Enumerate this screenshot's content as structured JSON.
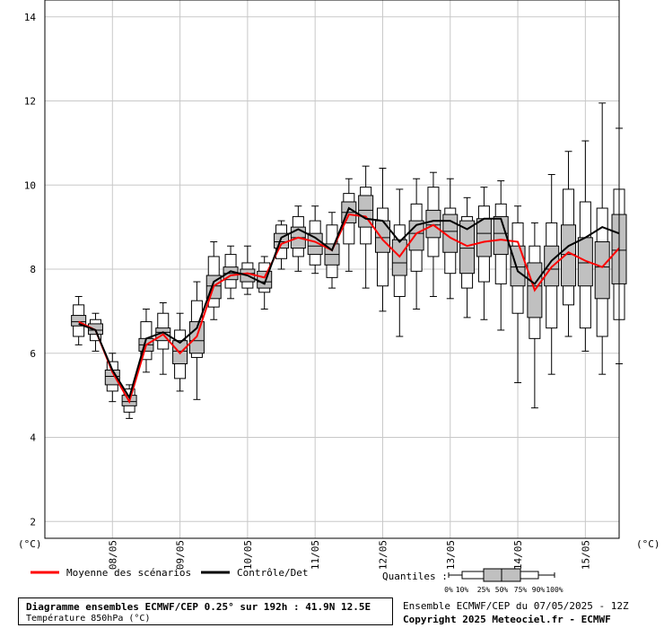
{
  "chart_data": {
    "type": "boxplot",
    "title": "",
    "y_unit_left": "(°C)",
    "y_unit_right": "(°C)",
    "ylim": [
      1.6,
      14.4
    ],
    "yticks": [
      2,
      4,
      6,
      8,
      10,
      12,
      14
    ],
    "grid": true,
    "x_tick_labels": [
      "08/05",
      "09/05",
      "10/05",
      "11/05",
      "12/05",
      "13/05",
      "14/05",
      "15/05"
    ],
    "x_range_hours": [
      -12,
      192
    ],
    "x_tick_hours": [
      12,
      36,
      60,
      84,
      108,
      132,
      156,
      180
    ],
    "boxes": [
      {
        "h": 0,
        "min": 6.2,
        "p10": 6.4,
        "p25": 6.65,
        "p50": 6.75,
        "p75": 6.9,
        "p90": 7.15,
        "max": 7.35
      },
      {
        "h": 6,
        "min": 6.05,
        "p10": 6.3,
        "p25": 6.45,
        "p50": 6.55,
        "p75": 6.7,
        "p90": 6.8,
        "max": 6.95
      },
      {
        "h": 12,
        "min": 4.85,
        "p10": 5.1,
        "p25": 5.25,
        "p50": 5.45,
        "p75": 5.6,
        "p90": 5.8,
        "max": 6.0
      },
      {
        "h": 18,
        "min": 4.45,
        "p10": 4.6,
        "p25": 4.75,
        "p50": 4.85,
        "p75": 5.0,
        "p90": 5.15,
        "max": 5.25
      },
      {
        "h": 24,
        "min": 5.55,
        "p10": 5.85,
        "p25": 6.05,
        "p50": 6.2,
        "p75": 6.35,
        "p90": 6.75,
        "max": 7.05
      },
      {
        "h": 30,
        "min": 5.5,
        "p10": 6.1,
        "p25": 6.3,
        "p50": 6.5,
        "p75": 6.6,
        "p90": 6.95,
        "max": 7.2
      },
      {
        "h": 36,
        "min": 5.1,
        "p10": 5.4,
        "p25": 5.75,
        "p50": 6.05,
        "p75": 6.3,
        "p90": 6.55,
        "max": 6.95
      },
      {
        "h": 42,
        "min": 4.9,
        "p10": 5.9,
        "p25": 6.0,
        "p50": 6.3,
        "p75": 6.75,
        "p90": 7.25,
        "max": 7.7
      },
      {
        "h": 48,
        "min": 6.8,
        "p10": 7.1,
        "p25": 7.3,
        "p50": 7.6,
        "p75": 7.85,
        "p90": 8.3,
        "max": 8.65
      },
      {
        "h": 54,
        "min": 7.3,
        "p10": 7.55,
        "p25": 7.75,
        "p50": 7.9,
        "p75": 8.05,
        "p90": 8.35,
        "max": 8.55
      },
      {
        "h": 60,
        "min": 7.4,
        "p10": 7.55,
        "p25": 7.7,
        "p50": 7.9,
        "p75": 8.0,
        "p90": 8.15,
        "max": 8.55
      },
      {
        "h": 66,
        "min": 7.05,
        "p10": 7.45,
        "p25": 7.55,
        "p50": 7.7,
        "p75": 7.95,
        "p90": 8.15,
        "max": 8.3
      },
      {
        "h": 72,
        "min": 8.0,
        "p10": 8.25,
        "p25": 8.5,
        "p50": 8.65,
        "p75": 8.85,
        "p90": 9.05,
        "max": 9.15
      },
      {
        "h": 78,
        "min": 7.95,
        "p10": 8.3,
        "p25": 8.5,
        "p50": 8.75,
        "p75": 9.0,
        "p90": 9.25,
        "max": 9.5
      },
      {
        "h": 84,
        "min": 7.9,
        "p10": 8.1,
        "p25": 8.35,
        "p50": 8.55,
        "p75": 8.85,
        "p90": 9.15,
        "max": 9.5
      },
      {
        "h": 90,
        "min": 7.55,
        "p10": 7.8,
        "p25": 8.1,
        "p50": 8.35,
        "p75": 8.6,
        "p90": 9.05,
        "max": 9.35
      },
      {
        "h": 96,
        "min": 7.95,
        "p10": 8.6,
        "p25": 9.1,
        "p50": 9.35,
        "p75": 9.6,
        "p90": 9.8,
        "max": 10.15
      },
      {
        "h": 102,
        "min": 7.55,
        "p10": 8.6,
        "p25": 9.0,
        "p50": 9.4,
        "p75": 9.75,
        "p90": 9.95,
        "max": 10.45
      },
      {
        "h": 108,
        "min": 7.0,
        "p10": 7.6,
        "p25": 8.4,
        "p50": 8.75,
        "p75": 9.15,
        "p90": 9.45,
        "max": 10.4
      },
      {
        "h": 114,
        "min": 6.4,
        "p10": 7.35,
        "p25": 7.85,
        "p50": 8.15,
        "p75": 8.7,
        "p90": 9.05,
        "max": 9.9
      },
      {
        "h": 120,
        "min": 7.05,
        "p10": 7.95,
        "p25": 8.45,
        "p50": 8.85,
        "p75": 9.15,
        "p90": 9.55,
        "max": 10.15
      },
      {
        "h": 126,
        "min": 7.35,
        "p10": 8.3,
        "p25": 8.75,
        "p50": 9.05,
        "p75": 9.4,
        "p90": 9.95,
        "max": 10.3
      },
      {
        "h": 132,
        "min": 7.3,
        "p10": 7.9,
        "p25": 8.4,
        "p50": 8.9,
        "p75": 9.3,
        "p90": 9.45,
        "max": 10.15
      },
      {
        "h": 138,
        "min": 6.85,
        "p10": 7.55,
        "p25": 7.9,
        "p50": 8.5,
        "p75": 9.15,
        "p90": 9.25,
        "max": 9.7
      },
      {
        "h": 144,
        "min": 6.8,
        "p10": 7.7,
        "p25": 8.3,
        "p50": 8.85,
        "p75": 9.2,
        "p90": 9.5,
        "max": 9.95
      },
      {
        "h": 150,
        "min": 6.55,
        "p10": 7.65,
        "p25": 8.35,
        "p50": 8.85,
        "p75": 9.25,
        "p90": 9.55,
        "max": 10.1
      },
      {
        "h": 156,
        "min": 5.3,
        "p10": 6.95,
        "p25": 7.6,
        "p50": 8.05,
        "p75": 8.55,
        "p90": 9.1,
        "max": 9.5
      },
      {
        "h": 162,
        "min": 4.7,
        "p10": 6.35,
        "p25": 6.85,
        "p50": 7.6,
        "p75": 8.15,
        "p90": 8.55,
        "max": 9.1
      },
      {
        "h": 168,
        "min": 5.5,
        "p10": 6.6,
        "p25": 7.6,
        "p50": 8.0,
        "p75": 8.55,
        "p90": 9.1,
        "max": 10.25
      },
      {
        "h": 174,
        "min": 6.4,
        "p10": 7.15,
        "p25": 7.6,
        "p50": 8.35,
        "p75": 9.05,
        "p90": 9.9,
        "max": 10.8
      },
      {
        "h": 180,
        "min": 6.05,
        "p10": 6.6,
        "p25": 7.6,
        "p50": 8.15,
        "p75": 8.75,
        "p90": 9.6,
        "max": 11.05
      },
      {
        "h": 186,
        "min": 5.5,
        "p10": 6.4,
        "p25": 7.3,
        "p50": 8.05,
        "p75": 8.65,
        "p90": 9.45,
        "max": 11.95
      },
      {
        "h": 192,
        "min": 5.75,
        "p10": 6.8,
        "p25": 7.65,
        "p50": 8.45,
        "p75": 9.3,
        "p90": 9.9,
        "max": 11.35
      }
    ],
    "series": [
      {
        "name": "Moyenne des scénarios",
        "color": "#ff0000",
        "values": [
          6.75,
          6.55,
          5.55,
          4.85,
          6.2,
          6.45,
          6.0,
          6.4,
          7.6,
          7.85,
          7.9,
          7.8,
          8.6,
          8.75,
          8.65,
          8.45,
          9.3,
          9.25,
          8.7,
          8.3,
          8.85,
          9.05,
          8.75,
          8.55,
          8.65,
          8.7,
          8.65,
          7.5,
          8.05,
          8.4,
          8.2,
          8.05,
          8.5
        ]
      },
      {
        "name": "Contrôle/Det",
        "color": "#000000",
        "values": [
          6.7,
          6.55,
          5.6,
          4.95,
          6.35,
          6.5,
          6.25,
          6.6,
          7.7,
          7.95,
          7.85,
          7.65,
          8.75,
          8.95,
          8.75,
          8.45,
          9.45,
          9.2,
          9.15,
          8.65,
          9.05,
          9.15,
          9.15,
          8.95,
          9.2,
          9.2,
          7.95,
          7.65,
          8.2,
          8.55,
          8.75,
          9.0,
          8.85
        ]
      }
    ]
  },
  "legend": {
    "mean_label": "Moyenne des scénarios",
    "control_label": "Contrôle/Det",
    "quantiles_label": "Quantiles :",
    "quantile_ticks": [
      "0%",
      "10%",
      "25%",
      "50%",
      "75%",
      "90%",
      "100%"
    ]
  },
  "footer": {
    "title": "Diagramme ensembles ECMWF/CEP 0.25° sur 192h : 41.9N 12.5E",
    "subtitle": "Température 850hPa (°C)",
    "ensemble": "Ensemble ECMWF/CEP du 07/05/2025 - 12Z",
    "copyright": "Copyright 2025 Meteociel.fr - ECMWF"
  },
  "colors": {
    "box_fill": "#c0c0c0",
    "grid": "#c8c8c8",
    "mean": "#ff0000",
    "control": "#000000"
  }
}
